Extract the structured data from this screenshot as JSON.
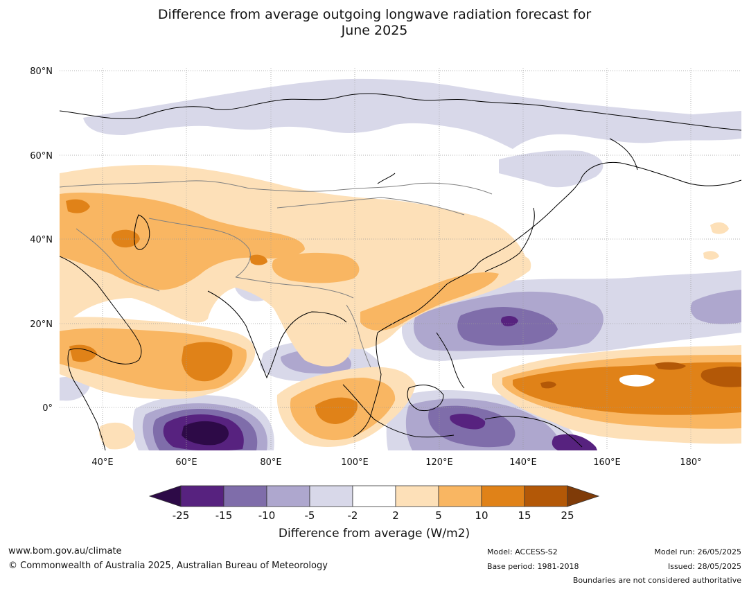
{
  "title_line1": "Difference from average outgoing longwave radiation forecast for",
  "title_line2": "June 2025",
  "map": {
    "lat_labels": [
      "80°N",
      "60°N",
      "40°N",
      "20°N",
      "0°"
    ],
    "lon_labels": [
      "40°E",
      "60°E",
      "80°E",
      "100°E",
      "120°E",
      "140°E",
      "160°E",
      "180°"
    ],
    "colors": {
      "n25": "#2d0a47",
      "n15": "#57227f",
      "n10": "#7f6daa",
      "n5": "#aea7ce",
      "n2": "#d8d8e9",
      "zero": "#ffffff",
      "p2": "#fde0b8",
      "p5": "#f9b662",
      "p10": "#e08218",
      "p15": "#b35807",
      "p25": "#7f3b08",
      "coast": "#000000",
      "border": "#808080",
      "grid": "#9a9a9a"
    }
  },
  "colorbar": {
    "tick_labels": [
      "-25",
      "-15",
      "-10",
      "-5",
      "-2",
      "2",
      "5",
      "10",
      "15",
      "25"
    ],
    "bin_colors": [
      "#57227f",
      "#7f6daa",
      "#aea7ce",
      "#d8d8e9",
      "#ffffff",
      "#fde0b8",
      "#f9b662",
      "#e08218",
      "#b35807"
    ],
    "low_extend_color": "#2d0a47",
    "high_extend_color": "#7f3b08",
    "title": "Difference from average (W/m2)"
  },
  "footer": {
    "website": "www.bom.gov.au/climate",
    "copyright": "© Commonwealth of Australia 2025, Australian Bureau of Meteorology",
    "model": "Model: ACCESS-S2",
    "base_period": "Base period: 1981-2018",
    "model_run": "Model run: 26/05/2025",
    "issued": "Issued: 28/05/2025",
    "disclaimer": "Boundaries are not considered authoritative"
  }
}
